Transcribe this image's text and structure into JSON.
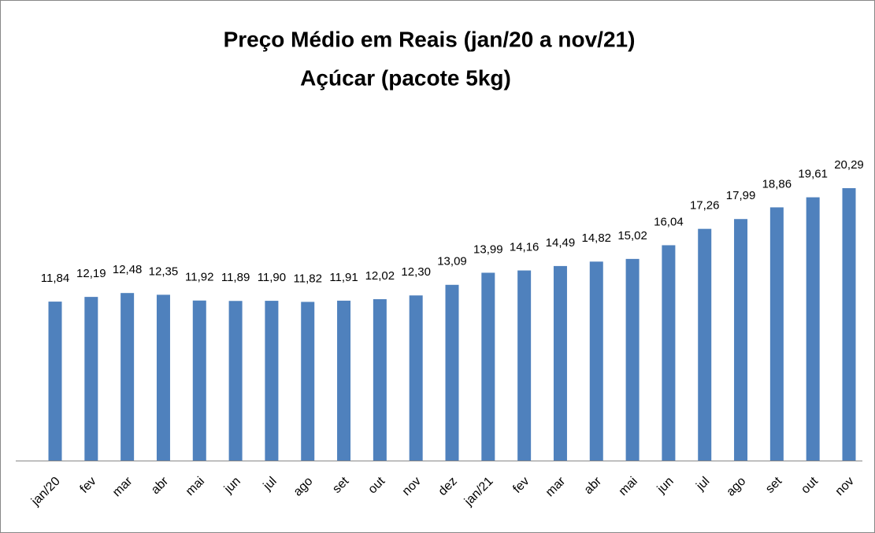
{
  "chart_data": {
    "type": "bar",
    "title": "Preço Médio em Reais (jan/20 a nov/21)",
    "subtitle": "Açúcar (pacote 5kg)",
    "categories": [
      "jan/20",
      "fev",
      "mar",
      "abr",
      "mai",
      "jun",
      "jul",
      "ago",
      "set",
      "out",
      "nov",
      "dez",
      "jan/21",
      "fev",
      "mar",
      "abr",
      "mai",
      "jun",
      "jul",
      "ago",
      "set",
      "out",
      "nov"
    ],
    "values": [
      11.84,
      12.19,
      12.48,
      12.35,
      11.92,
      11.89,
      11.9,
      11.82,
      11.91,
      12.02,
      12.3,
      13.09,
      13.99,
      14.16,
      14.49,
      14.82,
      15.02,
      16.04,
      17.26,
      17.99,
      18.86,
      19.61,
      20.29
    ],
    "value_labels": [
      "11,84",
      "12,19",
      "12,48",
      "12,35",
      "11,92",
      "11,89",
      "11,90",
      "11,82",
      "11,91",
      "12,02",
      "12,30",
      "13,09",
      "13,99",
      "14,16",
      "14,49",
      "14,82",
      "15,02",
      "16,04",
      "17,26",
      "17,99",
      "18,86",
      "19,61",
      "20,29"
    ],
    "color": "#4f81bd"
  }
}
